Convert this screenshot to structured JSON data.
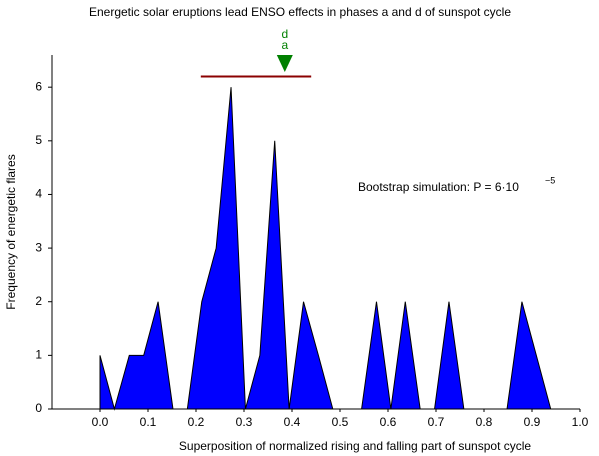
{
  "chart_data": {
    "type": "area",
    "title": "Energetic solar eruptions lead ENSO effects in phases a and d of sunspot cycle",
    "x_label": "Superposition of normalized rising and falling part of sunspot cycle",
    "y_label": "Frequency of energetic flares",
    "x": [
      0,
      0,
      0.03,
      0.061,
      0.091,
      0.121,
      0.152,
      0.182,
      0.212,
      0.242,
      0.273,
      0.303,
      0.333,
      0.364,
      0.394,
      0.424,
      0.455,
      0.485,
      0.515,
      0.545,
      0.576,
      0.606,
      0.636,
      0.667,
      0.697,
      0.727,
      0.758,
      0.788,
      0.818,
      0.848,
      0.879,
      0.909,
      0.939
    ],
    "series": [
      {
        "name": "Frequency of energetic flares",
        "color": "#0000ff",
        "values": [
          0,
          1,
          0,
          1,
          1,
          2,
          0,
          0,
          2,
          3,
          6,
          0,
          1,
          5,
          0,
          2,
          1,
          0,
          0,
          0,
          2,
          0,
          2,
          0,
          0,
          2,
          0,
          0,
          0,
          0,
          2,
          1,
          0
        ]
      }
    ],
    "xlim": [
      -0.1,
      1.0
    ],
    "xticks": [
      {
        "value": 0,
        "label": "0.0"
      },
      0.1,
      0.2,
      0.3,
      0.4,
      0.5,
      0.6,
      0.7,
      0.8,
      0.9,
      {
        "value": 1,
        "label": "1.0"
      }
    ],
    "ylim": [
      0,
      6.6
    ],
    "yticks": [
      0,
      1,
      2,
      3,
      4,
      5,
      6
    ],
    "annotation": {
      "text": "Bootstrap simulation: P = 6·10",
      "exponent": "−5"
    },
    "range_line": {
      "x": [
        0.21,
        0.44
      ],
      "y": 6.2,
      "color": "#8b0000"
    },
    "marker": {
      "x": 0.385,
      "labels": [
        "d",
        "a"
      ],
      "color": "#008000"
    }
  }
}
